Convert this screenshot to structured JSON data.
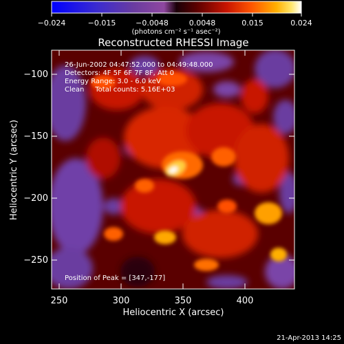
{
  "colorbar": {
    "tick_labels": [
      "−0.024",
      "−0.015",
      "−0.0048",
      "0.0048",
      "0.015",
      "0.024"
    ],
    "unit_label": "(photons cm⁻² s⁻¹ asec⁻²)"
  },
  "title": "Reconstructed RHESSI Image",
  "info": {
    "time_range": "26-Jun-2002 04:47:52.000 to 04:49:48.000",
    "detectors": "Detectors: 4F 5F 6F 7F 8F, Att 0",
    "energy_range": "Energy Range: 3.0 - 6.0 keV",
    "algorithm": "Clean     Total counts: 5.16E+03",
    "peak": "Position of Peak = [347,-177]"
  },
  "axes": {
    "xlabel": "Heliocentric X (arcsec)",
    "ylabel": "Heliocentric Y (arcsec)",
    "x_ticks": [
      "250",
      "300",
      "350",
      "400"
    ],
    "y_ticks": [
      "−100",
      "−150",
      "−200",
      "−250"
    ]
  },
  "footer": {
    "timestamp": "21-Apr-2013 14:25"
  },
  "colors": {
    "background": "#000000",
    "text": "#ffffff",
    "colormap": [
      "#0000ff",
      "#3a2bd0",
      "#6a3ca0",
      "#8f47a0",
      "#2a0010",
      "#4a0000",
      "#8a0000",
      "#c81400",
      "#ff5000",
      "#ffa000",
      "#ffe14a",
      "#ffffff"
    ]
  }
}
